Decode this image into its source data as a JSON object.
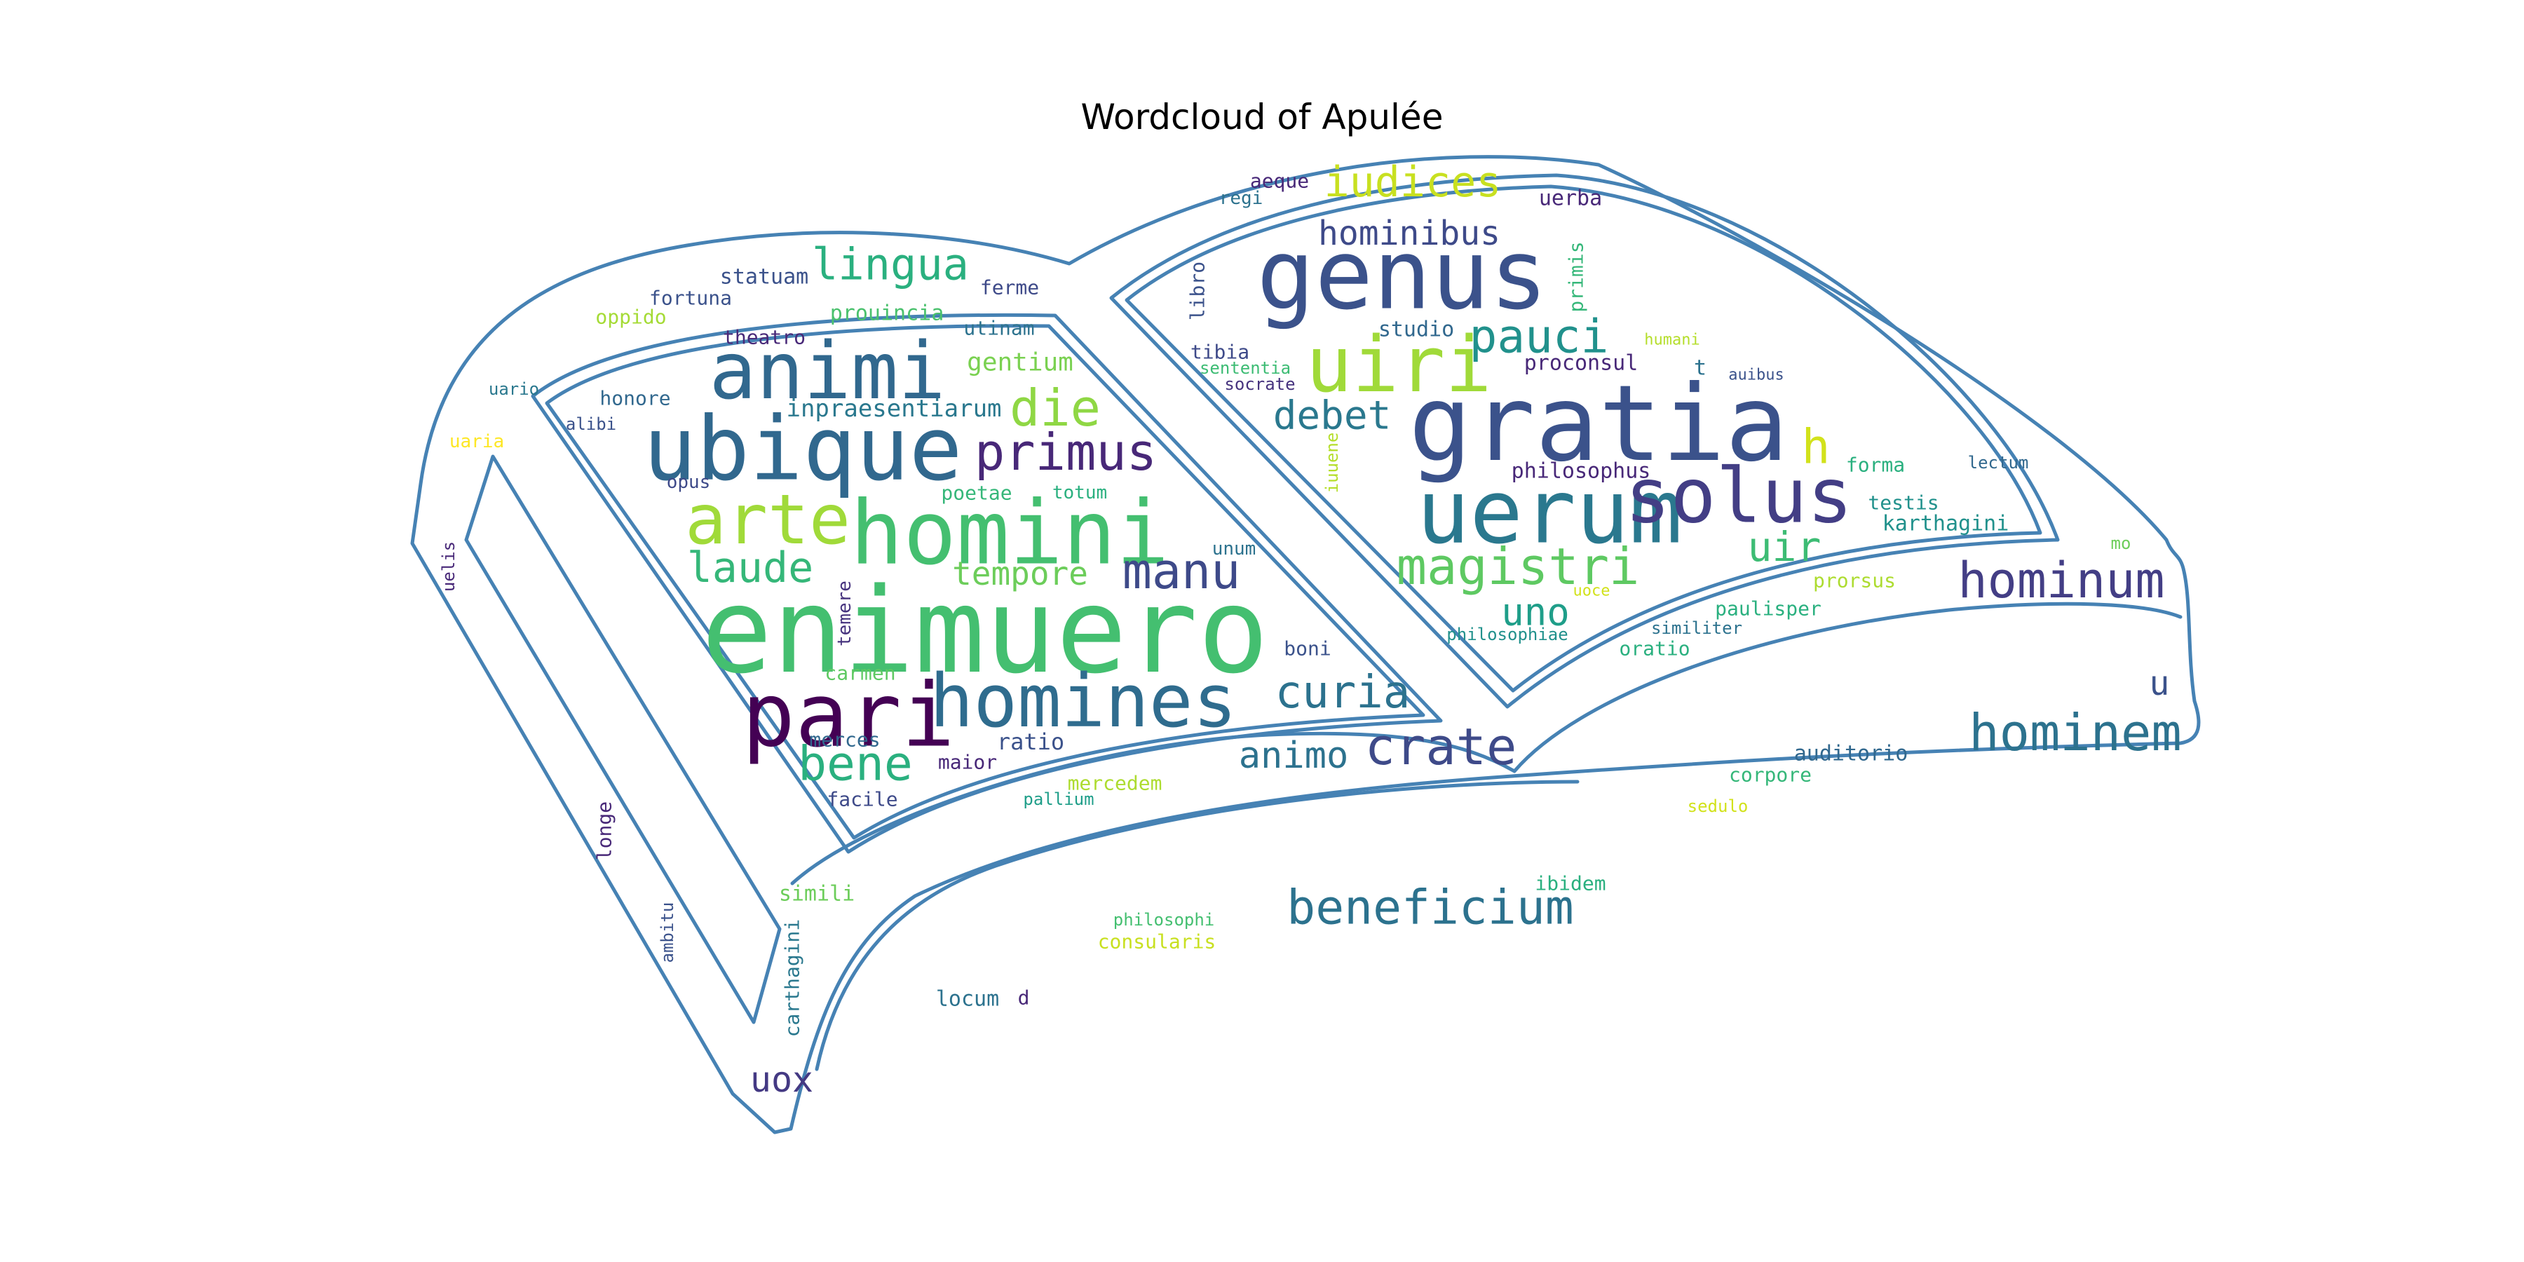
{
  "title": "Wordcloud of Apulée",
  "outline_color": "#4682b4",
  "words": [
    {
      "text": "enimuero",
      "color": "#44bf70"
    },
    {
      "text": "gratia",
      "color": "#3b528b"
    },
    {
      "text": "homini",
      "color": "#44bf70"
    },
    {
      "text": "genus",
      "color": "#3b528b"
    },
    {
      "text": "uerum",
      "color": "#2a788e"
    },
    {
      "text": "ubique",
      "color": "#31688e"
    },
    {
      "text": "animi",
      "color": "#31688e"
    },
    {
      "text": "homines",
      "color": "#2f6c8e"
    },
    {
      "text": "pari",
      "color": "#440154"
    },
    {
      "text": "uiri",
      "color": "#a0da39"
    },
    {
      "text": "solus",
      "color": "#433e85"
    },
    {
      "text": "arte",
      "color": "#a0da39"
    },
    {
      "text": "hominem",
      "color": "#2c728e"
    },
    {
      "text": "crate",
      "color": "#3e4a89"
    },
    {
      "text": "hominum",
      "color": "#433e85"
    },
    {
      "text": "magistri",
      "color": "#5ec962"
    },
    {
      "text": "beneficium",
      "color": "#2c728e"
    },
    {
      "text": "primus",
      "color": "#482878"
    },
    {
      "text": "manu",
      "color": "#3e4a89"
    },
    {
      "text": "pauci",
      "color": "#21918c"
    },
    {
      "text": "bene",
      "color": "#2ab07f"
    },
    {
      "text": "curia",
      "color": "#2c728e"
    },
    {
      "text": "die",
      "color": "#8fd744"
    },
    {
      "text": "laude",
      "color": "#35b779"
    },
    {
      "text": "lingua",
      "color": "#2ab07f"
    },
    {
      "text": "iudices",
      "color": "#c8e020"
    },
    {
      "text": "h",
      "color": "#d2e21b"
    },
    {
      "text": "uir",
      "color": "#3dbc74"
    },
    {
      "text": "debet",
      "color": "#2a788e"
    },
    {
      "text": "animo",
      "color": "#2c728e"
    },
    {
      "text": "hominibus",
      "color": "#3e4a89"
    },
    {
      "text": "tempore",
      "color": "#6ccd5a"
    },
    {
      "text": "uno",
      "color": "#1f9e89"
    },
    {
      "text": "uox",
      "color": "#443983"
    },
    {
      "text": "u",
      "color": "#3b528b"
    },
    {
      "text": "inpraesentiarum",
      "color": "#2a788e"
    },
    {
      "text": "gentium",
      "color": "#7ad151"
    },
    {
      "text": "prouincia",
      "color": "#4ac16d"
    },
    {
      "text": "statuam",
      "color": "#3b528b"
    },
    {
      "text": "ferme",
      "color": "#3e4a89"
    },
    {
      "text": "fortuna",
      "color": "#3b528b"
    },
    {
      "text": "oppido",
      "color": "#a5db36"
    },
    {
      "text": "theatro",
      "color": "#482878"
    },
    {
      "text": "utinam",
      "color": "#2c728e"
    },
    {
      "text": "uario",
      "color": "#2a788e"
    },
    {
      "text": "honore",
      "color": "#31688e"
    },
    {
      "text": "alibi",
      "color": "#3b528b"
    },
    {
      "text": "uaria",
      "color": "#fde725"
    },
    {
      "text": "opus",
      "color": "#3e4a89"
    },
    {
      "text": "poetae",
      "color": "#35b779"
    },
    {
      "text": "totum",
      "color": "#2ab07f"
    },
    {
      "text": "unum",
      "color": "#2c728e"
    },
    {
      "text": "temere",
      "color": "#46337e"
    },
    {
      "text": "carmen",
      "color": "#5ec962"
    },
    {
      "text": "merces",
      "color": "#31688e"
    },
    {
      "text": "ratio",
      "color": "#3b528b"
    },
    {
      "text": "maior",
      "color": "#482878"
    },
    {
      "text": "mercedem",
      "color": "#addc30"
    },
    {
      "text": "pallium",
      "color": "#1f9e89"
    },
    {
      "text": "facile",
      "color": "#3e4a89"
    },
    {
      "text": "boni",
      "color": "#3b528b"
    },
    {
      "text": "uelis",
      "color": "#482878"
    },
    {
      "text": "longe",
      "color": "#482878"
    },
    {
      "text": "ambitu",
      "color": "#3b528b"
    },
    {
      "text": "simili",
      "color": "#6ccd5a"
    },
    {
      "text": "carthagini",
      "color": "#2a788e"
    },
    {
      "text": "philosophi",
      "color": "#44bf70"
    },
    {
      "text": "consularis",
      "color": "#c8e020"
    },
    {
      "text": "locum",
      "color": "#2c728e"
    },
    {
      "text": "d",
      "color": "#482878"
    },
    {
      "text": "ibidem",
      "color": "#2ab07f"
    },
    {
      "text": "aeque",
      "color": "#482878"
    },
    {
      "text": "regi",
      "color": "#2c728e"
    },
    {
      "text": "uerba",
      "color": "#482878"
    },
    {
      "text": "libro",
      "color": "#3b528b"
    },
    {
      "text": "primis",
      "color": "#35b779"
    },
    {
      "text": "studio",
      "color": "#31688e"
    },
    {
      "text": "tibia",
      "color": "#3e4a89"
    },
    {
      "text": "sententia",
      "color": "#3dbc74"
    },
    {
      "text": "socrate",
      "color": "#46337e"
    },
    {
      "text": "humani",
      "color": "#b5de2b"
    },
    {
      "text": "proconsul",
      "color": "#482878"
    },
    {
      "text": "t",
      "color": "#2c728e"
    },
    {
      "text": "auibus",
      "color": "#3b528b"
    },
    {
      "text": "iuuene",
      "color": "#b5de2b"
    },
    {
      "text": "philosophus",
      "color": "#482878"
    },
    {
      "text": "forma",
      "color": "#2ab07f"
    },
    {
      "text": "lectum",
      "color": "#31688e"
    },
    {
      "text": "testis",
      "color": "#21918c"
    },
    {
      "text": "karthagini",
      "color": "#21918c"
    },
    {
      "text": "mo",
      "color": "#6ccd5a"
    },
    {
      "text": "prorsus",
      "color": "#addc30"
    },
    {
      "text": "uoce",
      "color": "#d2e21b"
    },
    {
      "text": "paulisper",
      "color": "#2ab07f"
    },
    {
      "text": "philosophiae",
      "color": "#21918c"
    },
    {
      "text": "similiter",
      "color": "#2c728e"
    },
    {
      "text": "oratio",
      "color": "#2ab07f"
    },
    {
      "text": "auditorio",
      "color": "#31688e"
    },
    {
      "text": "corpore",
      "color": "#35b779"
    },
    {
      "text": "sedulo",
      "color": "#d2e21b"
    }
  ]
}
